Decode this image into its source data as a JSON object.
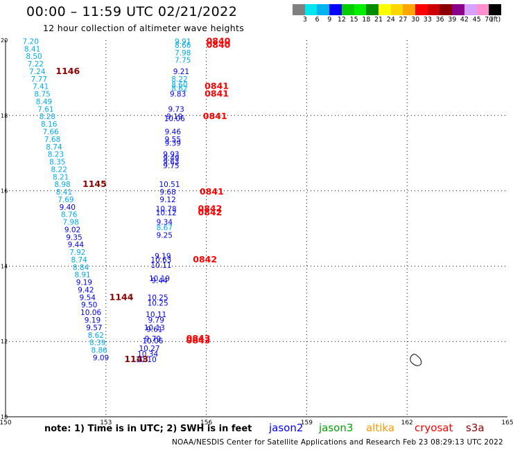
{
  "header": {
    "title": "00:00  –  11:59 UTC 02/21/2022",
    "subtitle": "12 hour collection of altimeter wave heights"
  },
  "color_scale": {
    "colors": [
      "#808080",
      "#00e5ee",
      "#00b2ee",
      "#0000ff",
      "#00cd00",
      "#00ee00",
      "#008b00",
      "#ffff00",
      "#ffd700",
      "#ffa500",
      "#ff0000",
      "#cd0000",
      "#8b0000",
      "#8b008b",
      "#d8a0ff",
      "#ff90d0",
      "#000000"
    ],
    "labels": [
      "3",
      "6",
      "9",
      "12",
      "15",
      "18",
      "21",
      "24",
      "27",
      "30",
      "33",
      "36",
      "39",
      "42",
      "45",
      "70",
      "(ft)"
    ]
  },
  "map": {
    "x_ticks": [
      "150",
      "153",
      "156",
      "159",
      "162",
      "165"
    ],
    "y_ticks": [
      "20",
      "18",
      "16",
      "14",
      "12",
      "10"
    ],
    "x_range": [
      150,
      165
    ],
    "y_range": [
      10,
      20
    ],
    "labels": [
      {
        "t": "7.20",
        "x": 150.75,
        "y": 19.9,
        "c": "#00aaee"
      },
      {
        "t": "8.41",
        "x": 150.8,
        "y": 19.7,
        "c": "#00aaee"
      },
      {
        "t": "8.50",
        "x": 150.85,
        "y": 19.5,
        "c": "#00aaee"
      },
      {
        "t": "7.22",
        "x": 150.9,
        "y": 19.3,
        "c": "#00aaee"
      },
      {
        "t": "7.24",
        "x": 150.95,
        "y": 19.1,
        "c": "#00aaee"
      },
      {
        "t": "7.77",
        "x": 151.0,
        "y": 18.9,
        "c": "#00aaee"
      },
      {
        "t": "7.41",
        "x": 151.05,
        "y": 18.7,
        "c": "#00aaee"
      },
      {
        "t": "8.75",
        "x": 151.1,
        "y": 18.5,
        "c": "#00aaee"
      },
      {
        "t": "8.49",
        "x": 151.15,
        "y": 18.3,
        "c": "#00aaee"
      },
      {
        "t": "7.61",
        "x": 151.2,
        "y": 18.1,
        "c": "#00aaee"
      },
      {
        "t": "8.28",
        "x": 151.25,
        "y": 17.9,
        "c": "#00aaee"
      },
      {
        "t": "8.16",
        "x": 151.3,
        "y": 17.7,
        "c": "#00aaee"
      },
      {
        "t": "7.66",
        "x": 151.35,
        "y": 17.5,
        "c": "#00aaee"
      },
      {
        "t": "7.68",
        "x": 151.4,
        "y": 17.3,
        "c": "#00aaee"
      },
      {
        "t": "8.74",
        "x": 151.45,
        "y": 17.1,
        "c": "#00aaee"
      },
      {
        "t": "8.23",
        "x": 151.5,
        "y": 16.9,
        "c": "#00aaee"
      },
      {
        "t": "8.35",
        "x": 151.55,
        "y": 16.7,
        "c": "#00aaee"
      },
      {
        "t": "8.22",
        "x": 151.6,
        "y": 16.5,
        "c": "#00aaee"
      },
      {
        "t": "8.21",
        "x": 151.65,
        "y": 16.3,
        "c": "#00aaee"
      },
      {
        "t": "8.98",
        "x": 151.7,
        "y": 16.1,
        "c": "#00aaee"
      },
      {
        "t": "8.41",
        "x": 151.75,
        "y": 15.9,
        "c": "#00aaee"
      },
      {
        "t": "7.69",
        "x": 151.8,
        "y": 15.7,
        "c": "#00aaee"
      },
      {
        "t": "9.40",
        "x": 151.85,
        "y": 15.5,
        "c": "#0000ee"
      },
      {
        "t": "8.76",
        "x": 151.9,
        "y": 15.3,
        "c": "#00aaee"
      },
      {
        "t": "7.98",
        "x": 151.95,
        "y": 15.1,
        "c": "#00aaee"
      },
      {
        "t": "9.02",
        "x": 152.0,
        "y": 14.9,
        "c": "#0000ee"
      },
      {
        "t": "9.35",
        "x": 152.05,
        "y": 14.7,
        "c": "#0000ee"
      },
      {
        "t": "9.44",
        "x": 152.1,
        "y": 14.5,
        "c": "#0000ee"
      },
      {
        "t": "7.92",
        "x": 152.15,
        "y": 14.3,
        "c": "#00aaee"
      },
      {
        "t": "8.74",
        "x": 152.2,
        "y": 14.1,
        "c": "#00aaee"
      },
      {
        "t": "8.84",
        "x": 152.25,
        "y": 13.9,
        "c": "#00aaee"
      },
      {
        "t": "8.91",
        "x": 152.3,
        "y": 13.7,
        "c": "#00aaee"
      },
      {
        "t": "9.19",
        "x": 152.35,
        "y": 13.5,
        "c": "#0000ee"
      },
      {
        "t": "9.42",
        "x": 152.4,
        "y": 13.3,
        "c": "#0000ee"
      },
      {
        "t": "9.54",
        "x": 152.45,
        "y": 13.1,
        "c": "#0000ee"
      },
      {
        "t": "9.50",
        "x": 152.5,
        "y": 12.9,
        "c": "#0000ee"
      },
      {
        "t": "10.06",
        "x": 152.55,
        "y": 12.7,
        "c": "#0000ee"
      },
      {
        "t": "9.19",
        "x": 152.6,
        "y": 12.5,
        "c": "#0000ee"
      },
      {
        "t": "9.57",
        "x": 152.65,
        "y": 12.3,
        "c": "#0000ee"
      },
      {
        "t": "8.62",
        "x": 152.7,
        "y": 12.1,
        "c": "#00aaee"
      },
      {
        "t": "8.39",
        "x": 152.75,
        "y": 11.9,
        "c": "#00aaee"
      },
      {
        "t": "8.86",
        "x": 152.8,
        "y": 11.7,
        "c": "#00aaee"
      },
      {
        "t": "9.09",
        "x": 152.85,
        "y": 11.5,
        "c": "#0000ee"
      },
      {
        "t": "9.91",
        "x": 155.3,
        "y": 19.9,
        "c": "#00aaee"
      },
      {
        "t": "8.66",
        "x": 155.3,
        "y": 19.8,
        "c": "#00aaee"
      },
      {
        "t": "7.98",
        "x": 155.3,
        "y": 19.6,
        "c": "#00aaee"
      },
      {
        "t": "7.75",
        "x": 155.3,
        "y": 19.4,
        "c": "#00aaee"
      },
      {
        "t": "9.21",
        "x": 155.25,
        "y": 19.1,
        "c": "#0000ee"
      },
      {
        "t": "8.22",
        "x": 155.2,
        "y": 18.9,
        "c": "#00aaee"
      },
      {
        "t": "8.60",
        "x": 155.2,
        "y": 18.75,
        "c": "#00aaee"
      },
      {
        "t": "8.62",
        "x": 155.2,
        "y": 18.65,
        "c": "#00aaee"
      },
      {
        "t": "9.83",
        "x": 155.15,
        "y": 18.5,
        "c": "#0000ee"
      },
      {
        "t": "9.73",
        "x": 155.1,
        "y": 18.1,
        "c": "#0000ee"
      },
      {
        "t": "9.19",
        "x": 155.05,
        "y": 17.9,
        "c": "#0000ee"
      },
      {
        "t": "10.06",
        "x": 155.05,
        "y": 17.85,
        "c": "#0000ee"
      },
      {
        "t": "9.46",
        "x": 155.0,
        "y": 17.5,
        "c": "#0000ee"
      },
      {
        "t": "9.55",
        "x": 155.0,
        "y": 17.3,
        "c": "#0000ee"
      },
      {
        "t": "9.39",
        "x": 155.0,
        "y": 17.2,
        "c": "#0000ee"
      },
      {
        "t": "9.93",
        "x": 154.95,
        "y": 16.9,
        "c": "#0000ee"
      },
      {
        "t": "9.49",
        "x": 154.95,
        "y": 16.8,
        "c": "#0000ee"
      },
      {
        "t": "9.63",
        "x": 154.95,
        "y": 16.7,
        "c": "#0000ee"
      },
      {
        "t": "9.75",
        "x": 154.95,
        "y": 16.6,
        "c": "#0000ee"
      },
      {
        "t": "10.51",
        "x": 154.9,
        "y": 16.1,
        "c": "#0000ee"
      },
      {
        "t": "9.68",
        "x": 154.85,
        "y": 15.9,
        "c": "#0000ee"
      },
      {
        "t": "9.12",
        "x": 154.85,
        "y": 15.7,
        "c": "#0000ee"
      },
      {
        "t": "10.78",
        "x": 154.8,
        "y": 15.45,
        "c": "#0000ee"
      },
      {
        "t": "10.12",
        "x": 154.8,
        "y": 15.35,
        "c": "#0000ee"
      },
      {
        "t": "9.34",
        "x": 154.75,
        "y": 15.1,
        "c": "#0000ee"
      },
      {
        "t": "8.67",
        "x": 154.75,
        "y": 14.95,
        "c": "#00aaee"
      },
      {
        "t": "9.25",
        "x": 154.75,
        "y": 14.75,
        "c": "#0000ee"
      },
      {
        "t": "9.19",
        "x": 154.7,
        "y": 14.2,
        "c": "#0000ee"
      },
      {
        "t": "10.63",
        "x": 154.65,
        "y": 14.1,
        "c": "#0000ee"
      },
      {
        "t": "10.11",
        "x": 154.65,
        "y": 13.95,
        "c": "#0000ee"
      },
      {
        "t": "10.19",
        "x": 154.6,
        "y": 13.6,
        "c": "#0000ee"
      },
      {
        "t": "9.44",
        "x": 154.6,
        "y": 13.55,
        "c": "#0000ee"
      },
      {
        "t": "10.25",
        "x": 154.55,
        "y": 13.1,
        "c": "#0000ee"
      },
      {
        "t": "10.25",
        "x": 154.55,
        "y": 12.95,
        "c": "#0000ee"
      },
      {
        "t": "10.11",
        "x": 154.5,
        "y": 12.65,
        "c": "#0000ee"
      },
      {
        "t": "9.79",
        "x": 154.5,
        "y": 12.5,
        "c": "#0000ee"
      },
      {
        "t": "10.13",
        "x": 154.45,
        "y": 12.3,
        "c": "#0000ee"
      },
      {
        "t": "9.61",
        "x": 154.45,
        "y": 12.25,
        "c": "#0000ee"
      },
      {
        "t": "9.79",
        "x": 154.4,
        "y": 12.0,
        "c": "#0000ee"
      },
      {
        "t": "10.06",
        "x": 154.4,
        "y": 11.95,
        "c": "#0000ee"
      },
      {
        "t": "10.27",
        "x": 154.3,
        "y": 11.75,
        "c": "#0000ee"
      },
      {
        "t": "10.34",
        "x": 154.25,
        "y": 11.6,
        "c": "#0000ee"
      },
      {
        "t": "10.10",
        "x": 154.2,
        "y": 11.45,
        "c": "#0000ee"
      }
    ],
    "times": [
      {
        "t": "0840",
        "x": 156.0,
        "y": 19.9,
        "c": "#ff0000"
      },
      {
        "t": "0840",
        "x": 156.0,
        "y": 19.8,
        "c": "#ff0000"
      },
      {
        "t": "1146",
        "x": 151.5,
        "y": 19.1,
        "c": "#8b0000"
      },
      {
        "t": "0841",
        "x": 155.95,
        "y": 18.7,
        "c": "#ff0000"
      },
      {
        "t": "0841",
        "x": 155.95,
        "y": 18.5,
        "c": "#ff0000"
      },
      {
        "t": "0841",
        "x": 155.9,
        "y": 17.9,
        "c": "#ff0000"
      },
      {
        "t": "1145",
        "x": 152.3,
        "y": 16.1,
        "c": "#8b0000"
      },
      {
        "t": "0841",
        "x": 155.8,
        "y": 15.9,
        "c": "#ff0000"
      },
      {
        "t": "0842",
        "x": 155.75,
        "y": 15.45,
        "c": "#ff0000"
      },
      {
        "t": "0842",
        "x": 155.75,
        "y": 15.35,
        "c": "#ff0000"
      },
      {
        "t": "0842",
        "x": 155.6,
        "y": 14.1,
        "c": "#ff0000"
      },
      {
        "t": "1144",
        "x": 153.1,
        "y": 13.1,
        "c": "#8b0000"
      },
      {
        "t": "0843",
        "x": 155.4,
        "y": 12.0,
        "c": "#ff0000"
      },
      {
        "t": "0843",
        "x": 155.4,
        "y": 11.95,
        "c": "#ff0000"
      },
      {
        "t": "1143",
        "x": 153.55,
        "y": 11.45,
        "c": "#8b0000"
      }
    ]
  },
  "footer": {
    "note": "note:  1) Time is in UTC;  2) SWH is in feet",
    "credit": "NOAA/NESDIS Center for Satellite Applications and Research    Feb 23 08:29:13 UTC 2022",
    "satellites": [
      {
        "name": "jason2",
        "color": "#0000ff"
      },
      {
        "name": "jason3",
        "color": "#00a000"
      },
      {
        "name": "altika",
        "color": "#ff9900"
      },
      {
        "name": "cryosat",
        "color": "#ff0000"
      },
      {
        "name": "s3a",
        "color": "#8b0000"
      }
    ]
  }
}
